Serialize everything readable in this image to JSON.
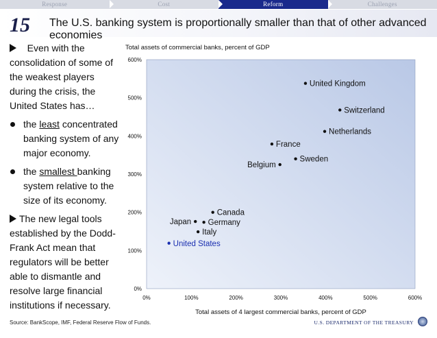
{
  "nav": {
    "tabs": [
      {
        "label": "Response",
        "active": false
      },
      {
        "label": "Cost",
        "active": false
      },
      {
        "label": "Reform",
        "active": true
      },
      {
        "label": "Challenges",
        "active": false
      }
    ]
  },
  "header": {
    "number": "15",
    "title": "The U.S. banking system is proportionally smaller than that of other advanced economies"
  },
  "text": {
    "intro": "Even with the consolidation of some of the weakest players during the crisis, the United States has…",
    "bullet1_pre": "the ",
    "bullet1_u": "least",
    "bullet1_post": " concentrated banking system of any major economy.",
    "bullet2_pre": "the ",
    "bullet2_u": "smallest ",
    "bullet2_post": "banking system relative to the size of its economy.",
    "closing": "The new legal tools established by the Dodd-Frank Act mean that regulators will be better able to dismantle and resolve large financial institutions if necessary."
  },
  "chart_data": {
    "type": "scatter",
    "title": "",
    "ylabel": "Total assets of commercial banks, percent of GDP",
    "xlabel": "Total assets of 4 largest commercial banks, percent of GDP",
    "xlim": [
      0,
      600
    ],
    "ylim": [
      0,
      600
    ],
    "xticks": [
      "0%",
      "100%",
      "200%",
      "300%",
      "400%",
      "500%",
      "600%"
    ],
    "yticks": [
      "0%",
      "100%",
      "200%",
      "300%",
      "400%",
      "500%",
      "600%"
    ],
    "grid": false,
    "points": [
      {
        "label": "United Kingdom",
        "x": 355,
        "y": 538,
        "label_side": "right",
        "color": "#111111"
      },
      {
        "label": "Switzerland",
        "x": 432,
        "y": 468,
        "label_side": "right",
        "color": "#111111"
      },
      {
        "label": "Netherlands",
        "x": 398,
        "y": 412,
        "label_side": "right",
        "color": "#111111"
      },
      {
        "label": "France",
        "x": 280,
        "y": 379,
        "label_side": "right",
        "color": "#111111"
      },
      {
        "label": "Sweden",
        "x": 333,
        "y": 340,
        "label_side": "right",
        "color": "#111111"
      },
      {
        "label": "Belgium",
        "x": 298,
        "y": 325,
        "label_side": "left",
        "color": "#111111"
      },
      {
        "label": "Canada",
        "x": 148,
        "y": 200,
        "label_side": "right",
        "color": "#111111"
      },
      {
        "label": "Japan",
        "x": 109,
        "y": 176,
        "label_side": "left",
        "color": "#111111"
      },
      {
        "label": "Germany",
        "x": 128,
        "y": 174,
        "label_side": "right",
        "color": "#111111"
      },
      {
        "label": "Italy",
        "x": 115,
        "y": 149,
        "label_side": "right",
        "color": "#111111"
      },
      {
        "label": "United States",
        "x": 50,
        "y": 119,
        "label_side": "right",
        "color": "#1a2fb0"
      }
    ],
    "plot_colors": {
      "top_right": "#b9c8e6",
      "bottom_left": "#eef2fa"
    }
  },
  "footer": {
    "source": "Source: BankScope, IMF, Federal Reserve Flow of Funds.",
    "treasury": "U.S. DEPARTMENT OF THE TREASURY"
  },
  "colors": {
    "nav_active": "#1a2a8c",
    "us_point": "#1a2fb0"
  }
}
